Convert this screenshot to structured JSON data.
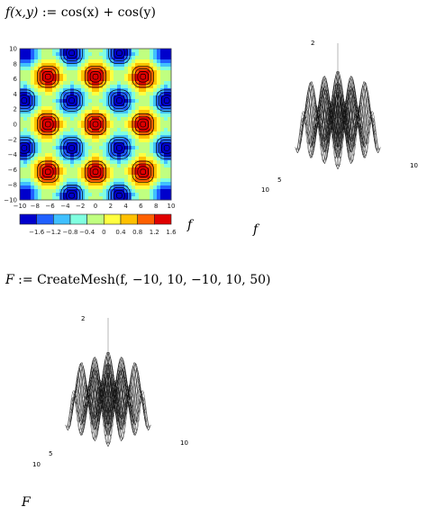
{
  "equations": {
    "definition": {
      "lhs": "f(x,y)",
      "assign": ":=",
      "rhs": "cos(x) + cos(y)"
    },
    "mesh": {
      "lhs": "F",
      "assign": ":=",
      "rhs": "CreateMesh(f, −10, 10, −10, 10, 50)"
    }
  },
  "contour_plot": {
    "label": "f",
    "x_ticks": [
      "−10",
      "−8",
      "−6",
      "−4",
      "−2",
      "0",
      "2",
      "4",
      "6",
      "8",
      "10"
    ],
    "y_ticks": [
      "10",
      "8",
      "6",
      "4",
      "2",
      "0",
      "−2",
      "−4",
      "−6",
      "−8",
      "−10"
    ],
    "legend_labels": [
      "−1.6",
      "−1.2",
      "−0.8",
      "−0.4",
      "0",
      "0.4",
      "0.8",
      "1.2",
      "1.6"
    ],
    "legend_colors": [
      "#0000cc",
      "#2060ff",
      "#40c0ff",
      "#80ffe0",
      "#c0ff80",
      "#ffff40",
      "#ffc000",
      "#ff6000",
      "#e00000"
    ]
  },
  "surface_plot_1": {
    "label": "f",
    "z_tick": "2",
    "x_tick": "10",
    "y_tick_a": "10",
    "y_tick_b": "5"
  },
  "surface_plot_2": {
    "label": "F",
    "z_tick": "2",
    "x_tick": "10",
    "y_tick_a": "10",
    "y_tick_b": "5"
  },
  "chart_data": [
    {
      "type": "heatmap",
      "title": "",
      "function": "cos(x)+cos(y)",
      "xlim": [
        -10,
        10
      ],
      "ylim": [
        -10,
        10
      ],
      "legend": [
        "-1.6",
        "-1.2",
        "-0.8",
        "-0.4",
        "0",
        "0.4",
        "0.8",
        "1.2",
        "1.6"
      ]
    }
  ]
}
